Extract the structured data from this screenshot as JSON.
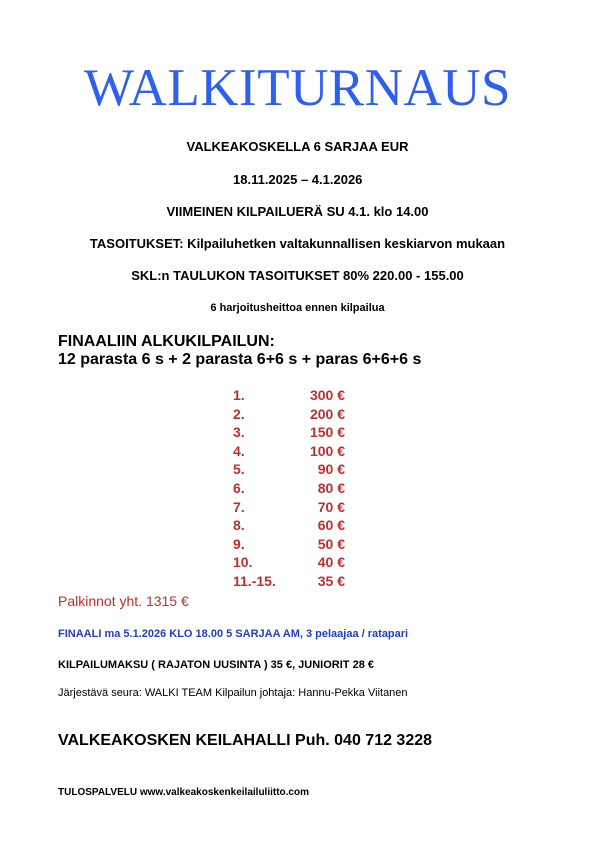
{
  "title": "WALKITURNAUS",
  "lines": {
    "location": "VALKEAKOSKELLA   6 SARJAA  EUR",
    "dates": "18.11.2025 – 4.1.2026",
    "last_round": "VIIMEINEN KILPAILUERÄ  SU  4.1. klo 14.00",
    "handicap": "TASOITUKSET: Kilpailuhetken valtakunnallisen keskiarvon mukaan",
    "skl": "SKL:n TAULUKON TASOITUKSET      80%  220.00 - 155.00",
    "practice": "6 harjoitusheittoa ennen kilpailua"
  },
  "final_format": {
    "heading": "FINAALIIN ALKUKILPAILUN:",
    "detail": "12 parasta 6 s + 2 parasta 6+6 s + paras 6+6+6 s"
  },
  "prizes": [
    {
      "place": "1.",
      "amount": "300 €"
    },
    {
      "place": "2.",
      "amount": "200 €"
    },
    {
      "place": "3.",
      "amount": "150 €"
    },
    {
      "place": "4.",
      "amount": "100 €"
    },
    {
      "place": "5.",
      "amount": "90 €"
    },
    {
      "place": "6.",
      "amount": "80 €"
    },
    {
      "place": "7.",
      "amount": "70 €"
    },
    {
      "place": "8.",
      "amount": "60 €"
    },
    {
      "place": "9.",
      "amount": "50 €"
    },
    {
      "place": "10.",
      "amount": "40 €"
    },
    {
      "place": "11.-15.",
      "amount": "35 €"
    }
  ],
  "prize_total": "Palkinnot yht. 1315 €",
  "final_info": "FINAALI   ma  5.1.2026  KLO 18.00    5 SARJAA AM, 3 pelaajaa / ratapari",
  "fee": "KILPAILUMAKSU  ( RAJATON UUSINTA )   35 €,  JUNIORIT 28 €",
  "organizer": "Järjestävä seura:   WALKI TEAM  Kilpailun johtaja: Hannu-Pekka Viitanen",
  "venue": "VALKEAKOSKEN KEILAHALLI  Puh. 040 712 3228",
  "results": "TULOSPALVELU    www.valkeakoskenkeilailuliitto.com",
  "colors": {
    "title": "#2f5ff0",
    "prize_red": "#c0302b",
    "final_blue": "#1f3ec9"
  }
}
